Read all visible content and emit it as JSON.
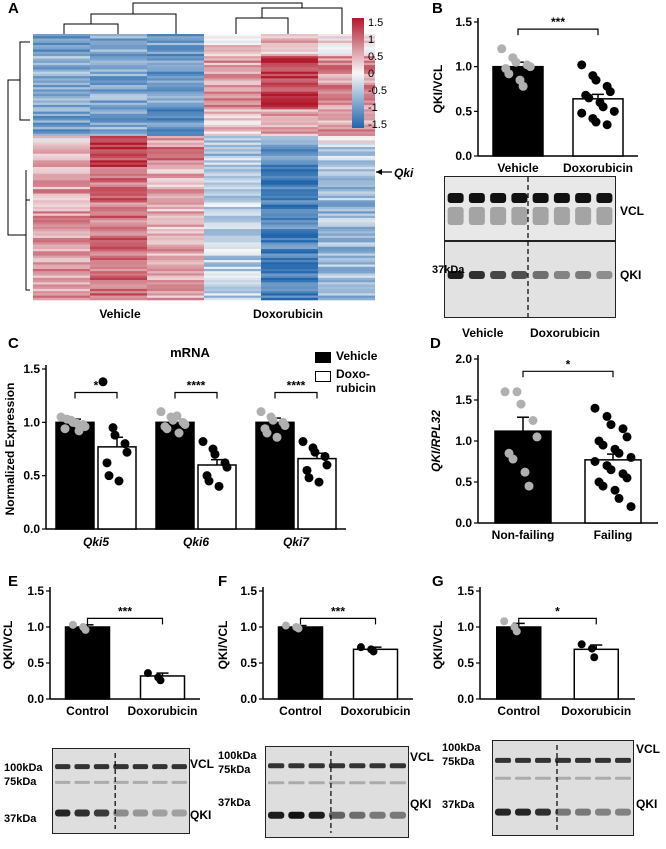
{
  "colors": {
    "black": "#000000",
    "grey_point": "#b0b0b0",
    "heat_high": "#b2182b",
    "heat_mid": "#f7f7f7",
    "heat_low": "#2166ac"
  },
  "panels": {
    "A": {
      "letter": "A",
      "arrow_label": "Qki",
      "groups": [
        "Vehicle",
        "Doxorubicin"
      ],
      "colorbar": {
        "ticks": [
          "1.5",
          "1",
          "0.5",
          "0",
          "-0.5",
          "-1",
          "-1.5"
        ]
      }
    },
    "B": {
      "letter": "B",
      "ylabel": "QKI/VCL",
      "sig": "***",
      "blot_markers": {
        "left": "37kDa",
        "right_top": "VCL",
        "right_bottom": "QKI"
      },
      "blot_groups": [
        "Vehicle",
        "Doxorubicin"
      ]
    },
    "C": {
      "letter": "C",
      "title": "mRNA",
      "ylabel": "Normalized Expression",
      "legend": [
        "Vehicle",
        "Doxo-",
        "rubicin"
      ],
      "sigs": [
        "*",
        "****",
        "****"
      ]
    },
    "D": {
      "letter": "D",
      "ylabel": "QKI/RPL32",
      "sig": "*"
    },
    "E": {
      "letter": "E",
      "ylabel": "QKI/VCL",
      "sig": "***",
      "blot": {
        "markers_left": [
          "100kDa",
          "75kDa",
          "37kDa"
        ],
        "markers_right": [
          "VCL",
          "QKI"
        ]
      }
    },
    "F": {
      "letter": "F",
      "ylabel": "QKI/VCL",
      "sig": "***",
      "blot": {
        "markers_left": [
          "100kDa",
          "75kDa",
          "37kDa"
        ],
        "markers_right": [
          "VCL",
          "QKI"
        ]
      }
    },
    "G": {
      "letter": "G",
      "ylabel": "QKI/VCL",
      "sig": "*",
      "blot": {
        "markers_left": [
          "100kDa",
          "75kDa",
          "37kDa"
        ],
        "markers_right": [
          "VCL",
          "QKI"
        ]
      }
    }
  },
  "chart_data": [
    {
      "id": "B",
      "type": "bar",
      "categories": [
        "Vehicle",
        "Doxorubicin"
      ],
      "values": [
        1.0,
        0.64
      ],
      "errors": [
        0.05,
        0.05
      ],
      "ylabel": "QKI/VCL",
      "ylim": [
        0,
        1.5
      ],
      "yticks": [
        "0.0",
        "0.5",
        "1.0",
        "1.5"
      ],
      "points": [
        [
          1.2,
          1.1,
          1.05,
          1.02,
          1.0,
          0.98,
          0.92,
          0.85,
          0.78
        ],
        [
          1.02,
          0.9,
          0.85,
          0.78,
          0.72,
          0.68,
          0.65,
          0.6,
          0.55,
          0.5,
          0.48,
          0.42,
          0.38,
          0.35
        ]
      ]
    },
    {
      "id": "C",
      "type": "bar",
      "title": "mRNA",
      "categories": [
        "Qki5",
        "Qki6",
        "Qki7"
      ],
      "series": [
        {
          "name": "Vehicle",
          "values": [
            1.0,
            1.0,
            1.0
          ],
          "errors": [
            0.03,
            0.03,
            0.04
          ]
        },
        {
          "name": "Doxo-rubicin",
          "values": [
            0.77,
            0.6,
            0.66
          ],
          "errors": [
            0.09,
            0.05,
            0.05
          ]
        }
      ],
      "ylabel": "Normalized Expression",
      "ylim": [
        0,
        1.5
      ],
      "yticks": [
        "0.0",
        "0.5",
        "1.0",
        "1.5"
      ],
      "points": [
        [
          [
            1.05,
            1.02,
            1.0,
            0.98,
            0.96,
            0.94,
            1.03,
            0.99,
            0.92
          ],
          [
            1.38,
            0.95,
            0.88,
            0.8,
            0.72,
            0.62,
            0.5,
            0.45
          ]
        ],
        [
          [
            1.1,
            1.05,
            1.02,
            1.0,
            0.98,
            0.96,
            0.94,
            1.06,
            0.9
          ],
          [
            0.82,
            0.75,
            0.7,
            0.62,
            0.58,
            0.5,
            0.45,
            0.4
          ]
        ],
        [
          [
            1.1,
            1.05,
            1.02,
            1.0,
            0.97,
            0.94,
            0.9,
            0.86
          ],
          [
            0.82,
            0.76,
            0.72,
            0.68,
            0.6,
            0.55,
            0.48,
            0.44
          ]
        ]
      ]
    },
    {
      "id": "D",
      "type": "bar",
      "categories": [
        "Non-failing",
        "Failing"
      ],
      "values": [
        1.12,
        0.77
      ],
      "errors": [
        0.17,
        0.07
      ],
      "ylabel": "QKI/RPL32",
      "ylim": [
        0,
        2.0
      ],
      "yticks": [
        "0.0",
        "0.5",
        "1.0",
        "1.5",
        "2.0"
      ],
      "points": [
        [
          1.6,
          1.6,
          1.45,
          1.25,
          1.05,
          0.85,
          0.78,
          0.62,
          0.45
        ],
        [
          1.4,
          1.3,
          1.2,
          1.15,
          1.05,
          1.0,
          0.95,
          0.9,
          0.85,
          0.8,
          0.75,
          0.7,
          0.65,
          0.6,
          0.55,
          0.5,
          0.45,
          0.4,
          0.3,
          0.2
        ]
      ]
    },
    {
      "id": "E",
      "type": "bar",
      "categories": [
        "Control",
        "Doxorubicin"
      ],
      "values": [
        1.0,
        0.32
      ],
      "errors": [
        0.03,
        0.04
      ],
      "ylabel": "QKI/VCL",
      "ylim": [
        0,
        1.5
      ],
      "yticks": [
        "0.0",
        "0.5",
        "1.0",
        "1.5"
      ],
      "points": [
        [
          1.03,
          1.0,
          0.96
        ],
        [
          0.36,
          0.3,
          0.26
        ]
      ]
    },
    {
      "id": "F",
      "type": "bar",
      "categories": [
        "Control",
        "Doxorubicin"
      ],
      "values": [
        1.0,
        0.69
      ],
      "errors": [
        0.02,
        0.03
      ],
      "ylabel": "QKI/VCL",
      "ylim": [
        0,
        1.5
      ],
      "yticks": [
        "0.0",
        "0.5",
        "1.0",
        "1.5"
      ],
      "points": [
        [
          1.02,
          1.0,
          0.98
        ],
        [
          0.72,
          0.69,
          0.66
        ]
      ]
    },
    {
      "id": "G",
      "type": "bar",
      "categories": [
        "Control",
        "Doxorubicin"
      ],
      "values": [
        1.0,
        0.69
      ],
      "errors": [
        0.05,
        0.06
      ],
      "ylabel": "QKI/VCL",
      "ylim": [
        0,
        1.5
      ],
      "yticks": [
        "0.0",
        "0.5",
        "1.0",
        "1.5"
      ],
      "points": [
        [
          1.08,
          1.0,
          0.94
        ],
        [
          0.76,
          0.7,
          0.58
        ]
      ]
    }
  ]
}
